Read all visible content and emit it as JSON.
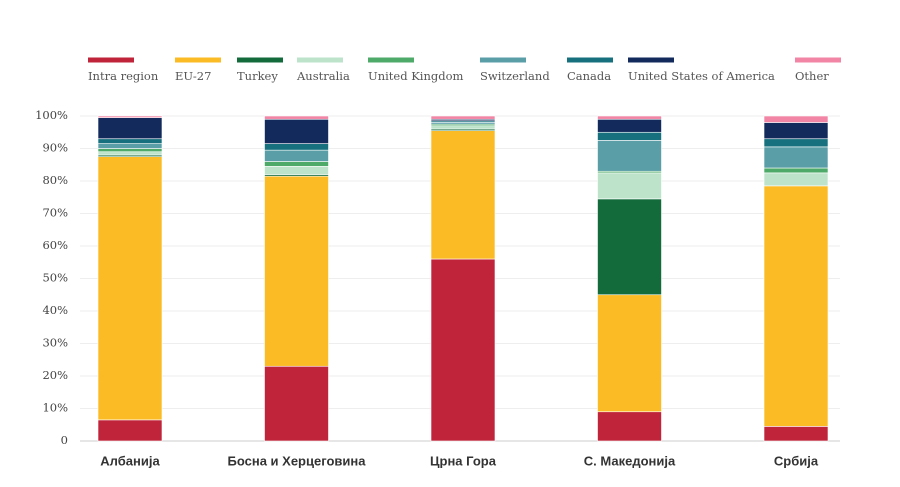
{
  "chart_data": {
    "type": "stacked-bar",
    "categories": [
      "Албанија",
      "Босна и Херцеговина",
      "Црна Гора",
      "С. Македонија",
      "Србија"
    ],
    "series": [
      {
        "name": "Intra region",
        "color": "#c0243a",
        "values": [
          6.5,
          23,
          56,
          9,
          4.5
        ]
      },
      {
        "name": "EU-27",
        "color": "#fbbb25",
        "values": [
          81,
          58.5,
          39.5,
          36,
          74
        ]
      },
      {
        "name": "Turkey",
        "color": "#136b3c",
        "values": [
          0.5,
          0.5,
          0.5,
          29.5,
          0
        ]
      },
      {
        "name": "Australia",
        "color": "#bde3cb",
        "values": [
          1,
          2.5,
          1,
          8,
          4
        ]
      },
      {
        "name": "United Kingdom",
        "color": "#4daa68",
        "values": [
          1,
          1.5,
          0.5,
          0.5,
          1.5
        ]
      },
      {
        "name": "Switzerland",
        "color": "#5a9ea8",
        "values": [
          1.5,
          3.5,
          0.5,
          9.5,
          6.5
        ]
      },
      {
        "name": "Canada",
        "color": "#16707e",
        "values": [
          1.5,
          2,
          0.5,
          2.5,
          2.5
        ]
      },
      {
        "name": "United States of America",
        "color": "#122a5c",
        "values": [
          6.5,
          7.5,
          0.5,
          4,
          5
        ]
      },
      {
        "name": "Other",
        "color": "#f285a5",
        "values": [
          0.5,
          1,
          1,
          1,
          2
        ]
      }
    ],
    "ylim": [
      0,
      100
    ],
    "yticks": [
      0,
      {
        "value": 10,
        "label": "10%"
      },
      {
        "value": 20,
        "label": "20%"
      },
      {
        "value": 30,
        "label": "30%"
      },
      {
        "value": 40,
        "label": "40%"
      },
      {
        "value": 50,
        "label": "50%"
      },
      {
        "value": 60,
        "label": "60%"
      },
      {
        "value": 70,
        "label": "70%"
      },
      {
        "value": 80,
        "label": "80%"
      },
      {
        "value": 90,
        "label": "90%"
      },
      {
        "value": 100,
        "label": "100%"
      }
    ],
    "grid": true
  }
}
